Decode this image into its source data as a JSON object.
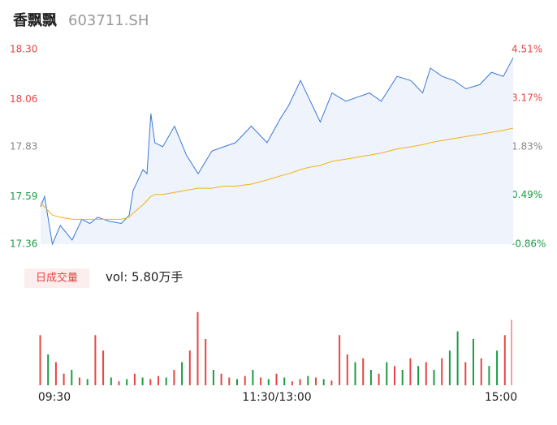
{
  "header": {
    "name": "香飘飘",
    "code": "603711.SH"
  },
  "chart_data": {
    "type": "intraday",
    "xlim": [
      0,
      240
    ],
    "xticks": [
      {
        "value": 0,
        "label": "09:30"
      },
      {
        "value": 120,
        "label": "11:30/13:00"
      },
      {
        "value": 240,
        "label": "15:00"
      }
    ],
    "ylim": [
      17.36,
      18.3
    ],
    "yticks": [
      {
        "value": 17.36,
        "label": "17.36"
      },
      {
        "value": 17.59,
        "label": "17.59"
      },
      {
        "value": 17.83,
        "label": "17.83"
      },
      {
        "value": 18.06,
        "label": "18.06"
      },
      {
        "value": 18.3,
        "label": "18.30"
      }
    ],
    "y2lim": [
      -0.86,
      4.51
    ],
    "y2ticks": [
      {
        "value": -0.86,
        "label": "-0.86%"
      },
      {
        "value": 0.49,
        "label": "0.49%"
      },
      {
        "value": 1.83,
        "label": "1.83%"
      },
      {
        "value": 3.17,
        "label": "3.17%"
      },
      {
        "value": 4.51,
        "label": "4.51%"
      }
    ],
    "tick_colors": {
      "up": "#e64545",
      "flat": "#888888",
      "down": "#1a9d45"
    },
    "series": [
      {
        "color": "#3a78d8",
        "fill": "#eef3fc",
        "x": [
          0,
          2,
          6,
          10,
          16,
          21,
          25,
          29,
          35,
          41,
          45,
          47,
          52,
          54,
          56,
          58,
          62,
          68,
          74,
          80,
          87,
          93,
          99,
          107,
          115,
          122,
          126,
          132,
          136,
          142,
          148,
          155,
          161,
          167,
          173,
          181,
          188,
          194,
          198,
          204,
          210,
          216,
          223,
          229,
          235,
          240
        ],
        "values": [
          17.54,
          17.59,
          17.36,
          17.45,
          17.38,
          17.48,
          17.46,
          17.49,
          17.47,
          17.46,
          17.5,
          17.62,
          17.72,
          17.7,
          17.99,
          17.85,
          17.83,
          17.93,
          17.79,
          17.7,
          17.81,
          17.83,
          17.85,
          17.93,
          17.85,
          17.97,
          18.03,
          18.15,
          18.07,
          17.95,
          18.09,
          18.05,
          18.07,
          18.09,
          18.05,
          18.17,
          18.15,
          18.09,
          18.21,
          18.17,
          18.15,
          18.11,
          18.13,
          18.19,
          18.17,
          18.26
        ]
      },
      {
        "color": "#f5b014",
        "x": [
          0,
          2,
          6,
          10,
          16,
          21,
          25,
          29,
          35,
          41,
          45,
          47,
          52,
          54,
          56,
          58,
          62,
          68,
          74,
          80,
          87,
          93,
          99,
          107,
          115,
          122,
          126,
          132,
          136,
          142,
          148,
          155,
          161,
          167,
          173,
          181,
          188,
          194,
          198,
          204,
          210,
          216,
          223,
          229,
          235,
          240
        ],
        "values": [
          17.56,
          17.54,
          17.5,
          17.49,
          17.48,
          17.48,
          17.48,
          17.48,
          17.48,
          17.48,
          17.49,
          17.51,
          17.55,
          17.57,
          17.59,
          17.6,
          17.6,
          17.61,
          17.62,
          17.63,
          17.63,
          17.64,
          17.64,
          17.65,
          17.67,
          17.69,
          17.7,
          17.72,
          17.73,
          17.74,
          17.76,
          17.77,
          17.78,
          17.79,
          17.8,
          17.82,
          17.83,
          17.84,
          17.85,
          17.86,
          17.87,
          17.88,
          17.89,
          17.9,
          17.91,
          17.92
        ]
      }
    ],
    "volume": {
      "legend": "日成交量",
      "label": "vol: 5.80万手",
      "ylim": [
        0,
        100
      ],
      "x": [
        0,
        4,
        8,
        12,
        16,
        20,
        24,
        28,
        32,
        36,
        40,
        44,
        48,
        52,
        56,
        60,
        64,
        68,
        72,
        76,
        80,
        84,
        88,
        92,
        96,
        100,
        104,
        108,
        112,
        116,
        120,
        124,
        128,
        132,
        136,
        140,
        144,
        148,
        152,
        156,
        160,
        164,
        168,
        172,
        176,
        180,
        184,
        188,
        192,
        196,
        200,
        204,
        208,
        212,
        216,
        220,
        224,
        228,
        232,
        236,
        240
      ],
      "values": [
        65,
        40,
        30,
        15,
        20,
        10,
        8,
        65,
        45,
        10,
        5,
        8,
        15,
        10,
        8,
        12,
        10,
        20,
        30,
        45,
        95,
        60,
        20,
        15,
        10,
        8,
        12,
        20,
        10,
        8,
        15,
        10,
        5,
        8,
        12,
        10,
        8,
        6,
        65,
        40,
        30,
        35,
        20,
        15,
        30,
        25,
        20,
        35,
        25,
        30,
        20,
        35,
        45,
        70,
        30,
        60,
        35,
        25,
        45,
        65,
        85
      ],
      "colors": [
        "#e64545",
        "#1a9d45",
        "#e64545",
        "#e64545",
        "#1a9d45",
        "#e64545",
        "#1a9d45",
        "#e64545",
        "#e64545",
        "#1a9d45",
        "#e64545",
        "#1a9d45",
        "#e64545",
        "#1a9d45",
        "#e64545",
        "#e64545",
        "#1a9d45",
        "#e64545",
        "#1a9d45",
        "#e64545",
        "#e64545",
        "#e64545",
        "#1a9d45",
        "#e64545",
        "#e64545",
        "#1a9d45",
        "#e64545",
        "#1a9d45",
        "#e64545",
        "#1a9d45",
        "#e64545",
        "#1a9d45",
        "#e64545",
        "#e64545",
        "#1a9d45",
        "#e64545",
        "#1a9d45",
        "#e64545",
        "#e64545",
        "#e64545",
        "#1a9d45",
        "#e64545",
        "#1a9d45",
        "#e64545",
        "#1a9d45",
        "#e64545",
        "#1a9d45",
        "#e64545",
        "#1a9d45",
        "#e64545",
        "#1a9d45",
        "#e64545",
        "#1a9d45",
        "#1a9d45",
        "#e64545",
        "#1a9d45",
        "#e64545",
        "#1a9d45",
        "#1a9d45",
        "#e64545",
        "#f4a0a0"
      ]
    }
  }
}
